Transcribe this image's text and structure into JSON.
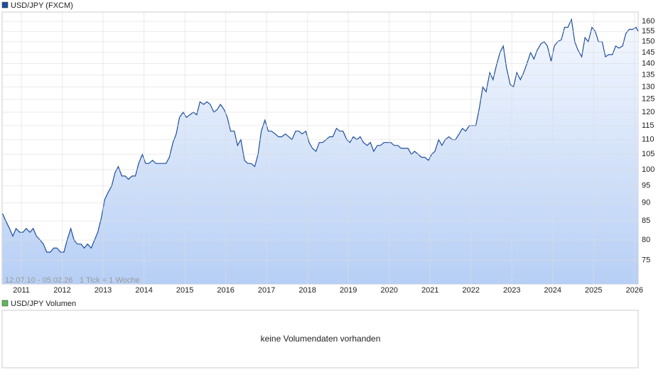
{
  "chart_data": {
    "type": "line",
    "annotations": [
      "12.07.10 - 05.02.26",
      "1 Tick = 1 Woche"
    ],
    "x": [
      2010.54,
      2010.62,
      2010.71,
      2010.79,
      2010.87,
      2010.96,
      2011.04,
      2011.12,
      2011.21,
      2011.29,
      2011.37,
      2011.46,
      2011.54,
      2011.62,
      2011.71,
      2011.79,
      2011.87,
      2011.96,
      2012.04,
      2012.12,
      2012.21,
      2012.29,
      2012.37,
      2012.46,
      2012.54,
      2012.62,
      2012.71,
      2012.79,
      2012.87,
      2012.96,
      2013.04,
      2013.12,
      2013.21,
      2013.29,
      2013.37,
      2013.46,
      2013.54,
      2013.62,
      2013.71,
      2013.79,
      2013.87,
      2013.96,
      2014.04,
      2014.12,
      2014.21,
      2014.29,
      2014.37,
      2014.46,
      2014.54,
      2014.62,
      2014.71,
      2014.79,
      2014.87,
      2014.96,
      2015.04,
      2015.12,
      2015.21,
      2015.29,
      2015.37,
      2015.46,
      2015.54,
      2015.62,
      2015.71,
      2015.79,
      2015.87,
      2015.96,
      2016.04,
      2016.12,
      2016.21,
      2016.29,
      2016.37,
      2016.46,
      2016.54,
      2016.62,
      2016.71,
      2016.79,
      2016.87,
      2016.96,
      2017.04,
      2017.12,
      2017.21,
      2017.29,
      2017.37,
      2017.46,
      2017.54,
      2017.62,
      2017.71,
      2017.79,
      2017.87,
      2017.96,
      2018.04,
      2018.12,
      2018.21,
      2018.29,
      2018.37,
      2018.46,
      2018.54,
      2018.62,
      2018.71,
      2018.79,
      2018.87,
      2018.96,
      2019.04,
      2019.12,
      2019.21,
      2019.29,
      2019.37,
      2019.46,
      2019.54,
      2019.62,
      2019.71,
      2019.79,
      2019.87,
      2019.96,
      2020.04,
      2020.12,
      2020.21,
      2020.29,
      2020.37,
      2020.46,
      2020.54,
      2020.62,
      2020.71,
      2020.79,
      2020.87,
      2020.96,
      2021.04,
      2021.12,
      2021.21,
      2021.29,
      2021.37,
      2021.46,
      2021.54,
      2021.62,
      2021.71,
      2021.79,
      2021.87,
      2021.96,
      2022.04,
      2022.12,
      2022.21,
      2022.29,
      2022.37,
      2022.46,
      2022.54,
      2022.62,
      2022.71,
      2022.79,
      2022.87,
      2022.96,
      2023.04,
      2023.12,
      2023.21,
      2023.29,
      2023.37,
      2023.46,
      2023.54,
      2023.62,
      2023.71,
      2023.79,
      2023.87,
      2023.96,
      2024.04,
      2024.12,
      2024.21,
      2024.29,
      2024.37,
      2024.46,
      2024.54,
      2024.62,
      2024.71,
      2024.79,
      2024.87,
      2024.96,
      2025.04,
      2025.12,
      2025.21,
      2025.29,
      2025.37,
      2025.46,
      2025.54,
      2025.62,
      2025.71,
      2025.79,
      2025.87,
      2025.96,
      2026.04,
      2026.09
    ],
    "series": [
      {
        "name": "USD/JPY (FXCM)",
        "color": "#1f4e9c",
        "values": [
          87,
          85,
          83,
          81,
          83,
          82,
          82,
          83,
          82,
          83,
          81,
          80,
          79,
          77,
          77,
          78,
          78,
          77,
          77,
          80,
          83,
          80,
          79,
          79,
          78,
          79,
          78,
          80,
          82,
          86,
          91,
          93,
          95,
          99,
          101,
          98,
          98,
          97,
          98,
          98,
          102,
          105,
          102,
          102,
          103,
          102,
          102,
          102,
          102,
          104,
          109,
          112,
          118,
          120,
          118,
          119,
          120,
          119,
          124,
          123,
          124,
          123,
          120,
          121,
          123,
          121,
          118,
          113,
          113,
          108,
          110,
          103,
          102,
          102,
          101,
          105,
          113,
          117,
          113,
          113,
          112,
          111,
          111,
          112,
          111,
          110,
          113,
          113,
          112,
          113,
          109,
          107,
          106,
          109,
          109,
          110,
          111,
          111,
          114,
          113,
          113,
          110,
          109,
          111,
          110,
          111,
          109,
          108,
          109,
          106,
          108,
          108,
          109,
          109,
          109,
          108,
          108,
          107,
          107,
          107,
          105,
          106,
          105,
          104,
          104,
          103,
          105,
          106,
          110,
          108,
          110,
          111,
          110,
          110,
          112,
          114,
          113,
          115,
          115,
          115,
          122,
          130,
          128,
          136,
          133,
          139,
          145,
          148,
          138,
          131,
          130,
          136,
          133,
          136,
          140,
          145,
          142,
          146,
          149,
          150,
          148,
          141,
          148,
          150,
          151,
          157,
          157,
          161,
          150,
          146,
          143,
          152,
          150,
          157,
          155,
          150,
          150,
          143,
          144,
          144,
          148,
          147,
          148,
          154,
          156,
          156,
          157,
          155
        ]
      }
    ],
    "xlim": [
      2010.53,
      2026.09
    ],
    "xticks": [
      2011,
      2012,
      2013,
      2014,
      2015,
      2016,
      2017,
      2018,
      2019,
      2020,
      2021,
      2022,
      2023,
      2024,
      2025,
      2026
    ],
    "ylim": [
      69.6,
      164.8
    ],
    "yticks": [
      75,
      80,
      85,
      90,
      95,
      100,
      105,
      110,
      115,
      120,
      125,
      130,
      135,
      140,
      145,
      150,
      155,
      160
    ],
    "log_scale": true,
    "grid": true
  },
  "volume_panel": {
    "legend": "USD/JPY Volumen",
    "color": "#5cb85c",
    "message": "keine Volumendaten vorhanden"
  }
}
